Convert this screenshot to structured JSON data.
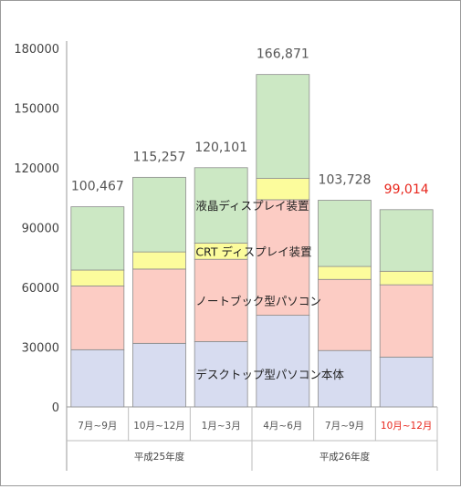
{
  "chart_data": {
    "type": "bar",
    "stacked": true,
    "categories": [
      "7月~9月",
      "10月~12月",
      "1月~3月",
      "4月~6月",
      "7月~9月",
      "10月~12月"
    ],
    "highlight_category_index": 5,
    "groups": [
      {
        "label": "平成25年度",
        "categories": [
          0,
          1,
          2
        ]
      },
      {
        "label": "平成26年度",
        "categories": [
          3,
          4,
          5
        ]
      }
    ],
    "series": [
      {
        "name": "デスクトップ型パソコン本体",
        "color": "#d7dcf0",
        "values": [
          28700,
          31900,
          32800,
          46000,
          28300,
          25000
        ]
      },
      {
        "name": "ノートブック型パソコン",
        "color": "#fcccc4",
        "values": [
          32000,
          37300,
          41300,
          58000,
          35700,
          36300
        ]
      },
      {
        "name": "CRT ディスプレイ装置",
        "color": "#fcfc9c",
        "values": [
          8000,
          8600,
          8100,
          10700,
          6500,
          6800
        ]
      },
      {
        "name": "液晶ディスプレイ装置",
        "color": "#cce8c4",
        "values": [
          31767,
          37457,
          37901,
          52171,
          33228,
          30914
        ]
      }
    ],
    "totals": [
      "100,467",
      "115,257",
      "120,101",
      "166,871",
      "103,728",
      "99,014"
    ],
    "y_ticks": [
      "0",
      "30000",
      "60000",
      "90000",
      "120000",
      "150000",
      "180000"
    ],
    "ylim": [
      0,
      180000
    ],
    "grid": false,
    "legend": "inline-labels",
    "highlight_color": "#e8261c"
  }
}
